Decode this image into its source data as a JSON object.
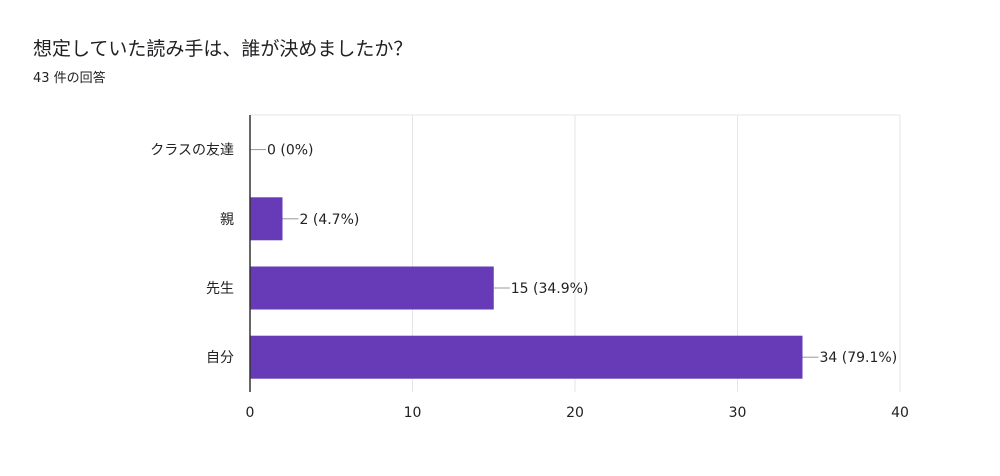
{
  "title": "想定していた読み手は、誰が決めましたか？",
  "response_count": "43 件の回答",
  "colors": {
    "bar": "#673ab7",
    "grid": "#e6e6e6",
    "axis": "#333333",
    "leader": "#999999"
  },
  "chart_data": {
    "type": "bar",
    "orientation": "horizontal",
    "categories": [
      "クラスの友達",
      "親",
      "先生",
      "自分"
    ],
    "values": [
      0,
      2,
      15,
      34
    ],
    "data_labels": [
      "0 (0%)",
      "2 (4.7%)",
      "15 (34.9%)",
      "34 (79.1%)"
    ],
    "xlim": [
      0,
      40
    ],
    "x_ticks": [
      0,
      10,
      20,
      30,
      40
    ],
    "grid": true,
    "legend": "none"
  }
}
